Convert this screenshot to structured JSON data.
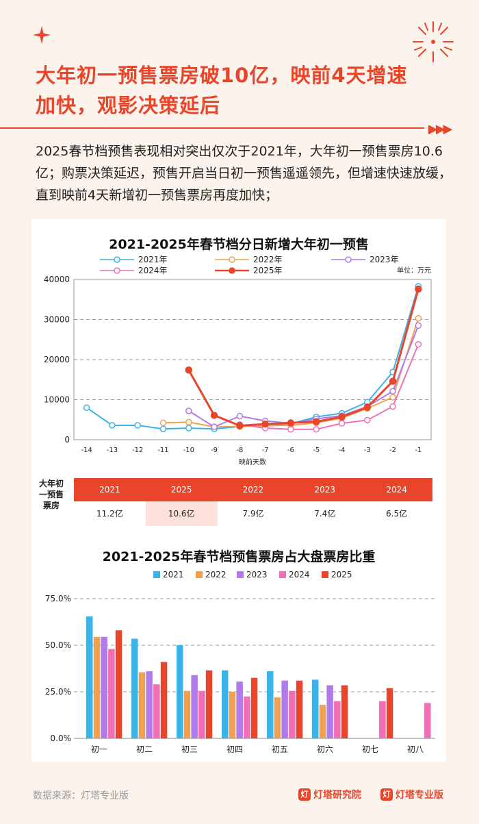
{
  "headline": {
    "line1": "大年初一预售票房破10亿，映前4天增速",
    "line2": "加快，观影决策延后"
  },
  "intro": "2025春节档预售表现相对突出仅次于2021年，大年初一预售票房10.6亿；购票决策延迟，预售开启当日初一预售遥遥领先，但增速快速放缓，直到映前4天新增初一预售票房再度加快；",
  "colors": {
    "accent": "#e8452a",
    "s2021": "#3bb3e6",
    "s2022": "#f0a050",
    "s2023": "#b07be8",
    "s2024": "#ef6fb4",
    "s2025": "#e8452a"
  },
  "chart_data": [
    {
      "type": "line",
      "title": "2021-2025年春节档分日新增大年初一预售",
      "xlabel": "映前天数",
      "ylabel": "",
      "unit": "单位：万元",
      "x": [
        -14,
        -13,
        -12,
        -11,
        -10,
        -9,
        -8,
        -7,
        -6,
        -5,
        -4,
        -3,
        -2,
        -1
      ],
      "ylim": [
        0,
        40000
      ],
      "yticks": [
        0,
        10000,
        20000,
        30000,
        40000
      ],
      "grid": true,
      "legend": "top",
      "series": [
        {
          "name": "2021年",
          "color": "#3bb3e6",
          "values": [
            8000,
            3600,
            3600,
            2700,
            2900,
            2700,
            3300,
            3700,
            4000,
            5700,
            6600,
            9400,
            16900,
            38300
          ]
        },
        {
          "name": "2022年",
          "color": "#f0a050",
          "values": [
            null,
            null,
            null,
            4200,
            4400,
            3200,
            3300,
            3500,
            3600,
            4200,
            5400,
            7800,
            10600,
            30300
          ]
        },
        {
          "name": "2023年",
          "color": "#b07be8",
          "values": [
            null,
            null,
            null,
            null,
            7200,
            3200,
            5900,
            4700,
            4100,
            5200,
            6000,
            8300,
            12100,
            28500
          ]
        },
        {
          "name": "2024年",
          "color": "#ef6fb4",
          "values": [
            null,
            null,
            null,
            null,
            null,
            null,
            3800,
            2900,
            2600,
            2600,
            4100,
            4900,
            8300,
            23800
          ]
        },
        {
          "name": "2025年",
          "color": "#e8452a",
          "values": [
            null,
            null,
            null,
            null,
            17400,
            6100,
            3500,
            3900,
            4200,
            4500,
            5700,
            8100,
            14600,
            37600
          ]
        }
      ]
    },
    {
      "type": "table",
      "label": "大年初一预售票房",
      "columns": [
        "2021",
        "2025",
        "2022",
        "2023",
        "2024"
      ],
      "values": [
        "11.2亿",
        "10.6亿",
        "7.9亿",
        "7.4亿",
        "6.5亿"
      ],
      "highlight": "2025"
    },
    {
      "type": "bar",
      "title": "2021-2025年春节档预售票房占大盘票房比重",
      "categories": [
        "初一",
        "初二",
        "初三",
        "初四",
        "初五",
        "初六",
        "初七",
        "初八"
      ],
      "ylim": [
        0,
        75
      ],
      "yticks": [
        "0.0%",
        "25.0%",
        "50.0%",
        "75.0%"
      ],
      "grid": true,
      "legend": "top",
      "series": [
        {
          "name": "2021",
          "color": "#3bb3e6",
          "values": [
            65.5,
            53.5,
            50.0,
            36.5,
            36.0,
            31.5,
            null,
            null
          ]
        },
        {
          "name": "2022",
          "color": "#f0a050",
          "values": [
            54.5,
            35.5,
            25.5,
            25.0,
            22.0,
            18.0,
            null,
            null
          ]
        },
        {
          "name": "2023",
          "color": "#b07be8",
          "values": [
            54.5,
            36.0,
            34.0,
            30.5,
            31.0,
            28.5,
            null,
            null
          ]
        },
        {
          "name": "2024",
          "color": "#ef6fb4",
          "values": [
            48.0,
            29.0,
            25.5,
            22.5,
            25.5,
            20.0,
            20.0,
            19.0
          ]
        },
        {
          "name": "2025",
          "color": "#e8452a",
          "values": [
            58.0,
            41.0,
            36.5,
            32.5,
            31.0,
            28.5,
            27.0,
            null
          ]
        }
      ]
    }
  ],
  "footer": {
    "source": "数据来源：灯塔专业版",
    "brand1": "灯塔研究院",
    "brand2": "灯塔专业版"
  }
}
